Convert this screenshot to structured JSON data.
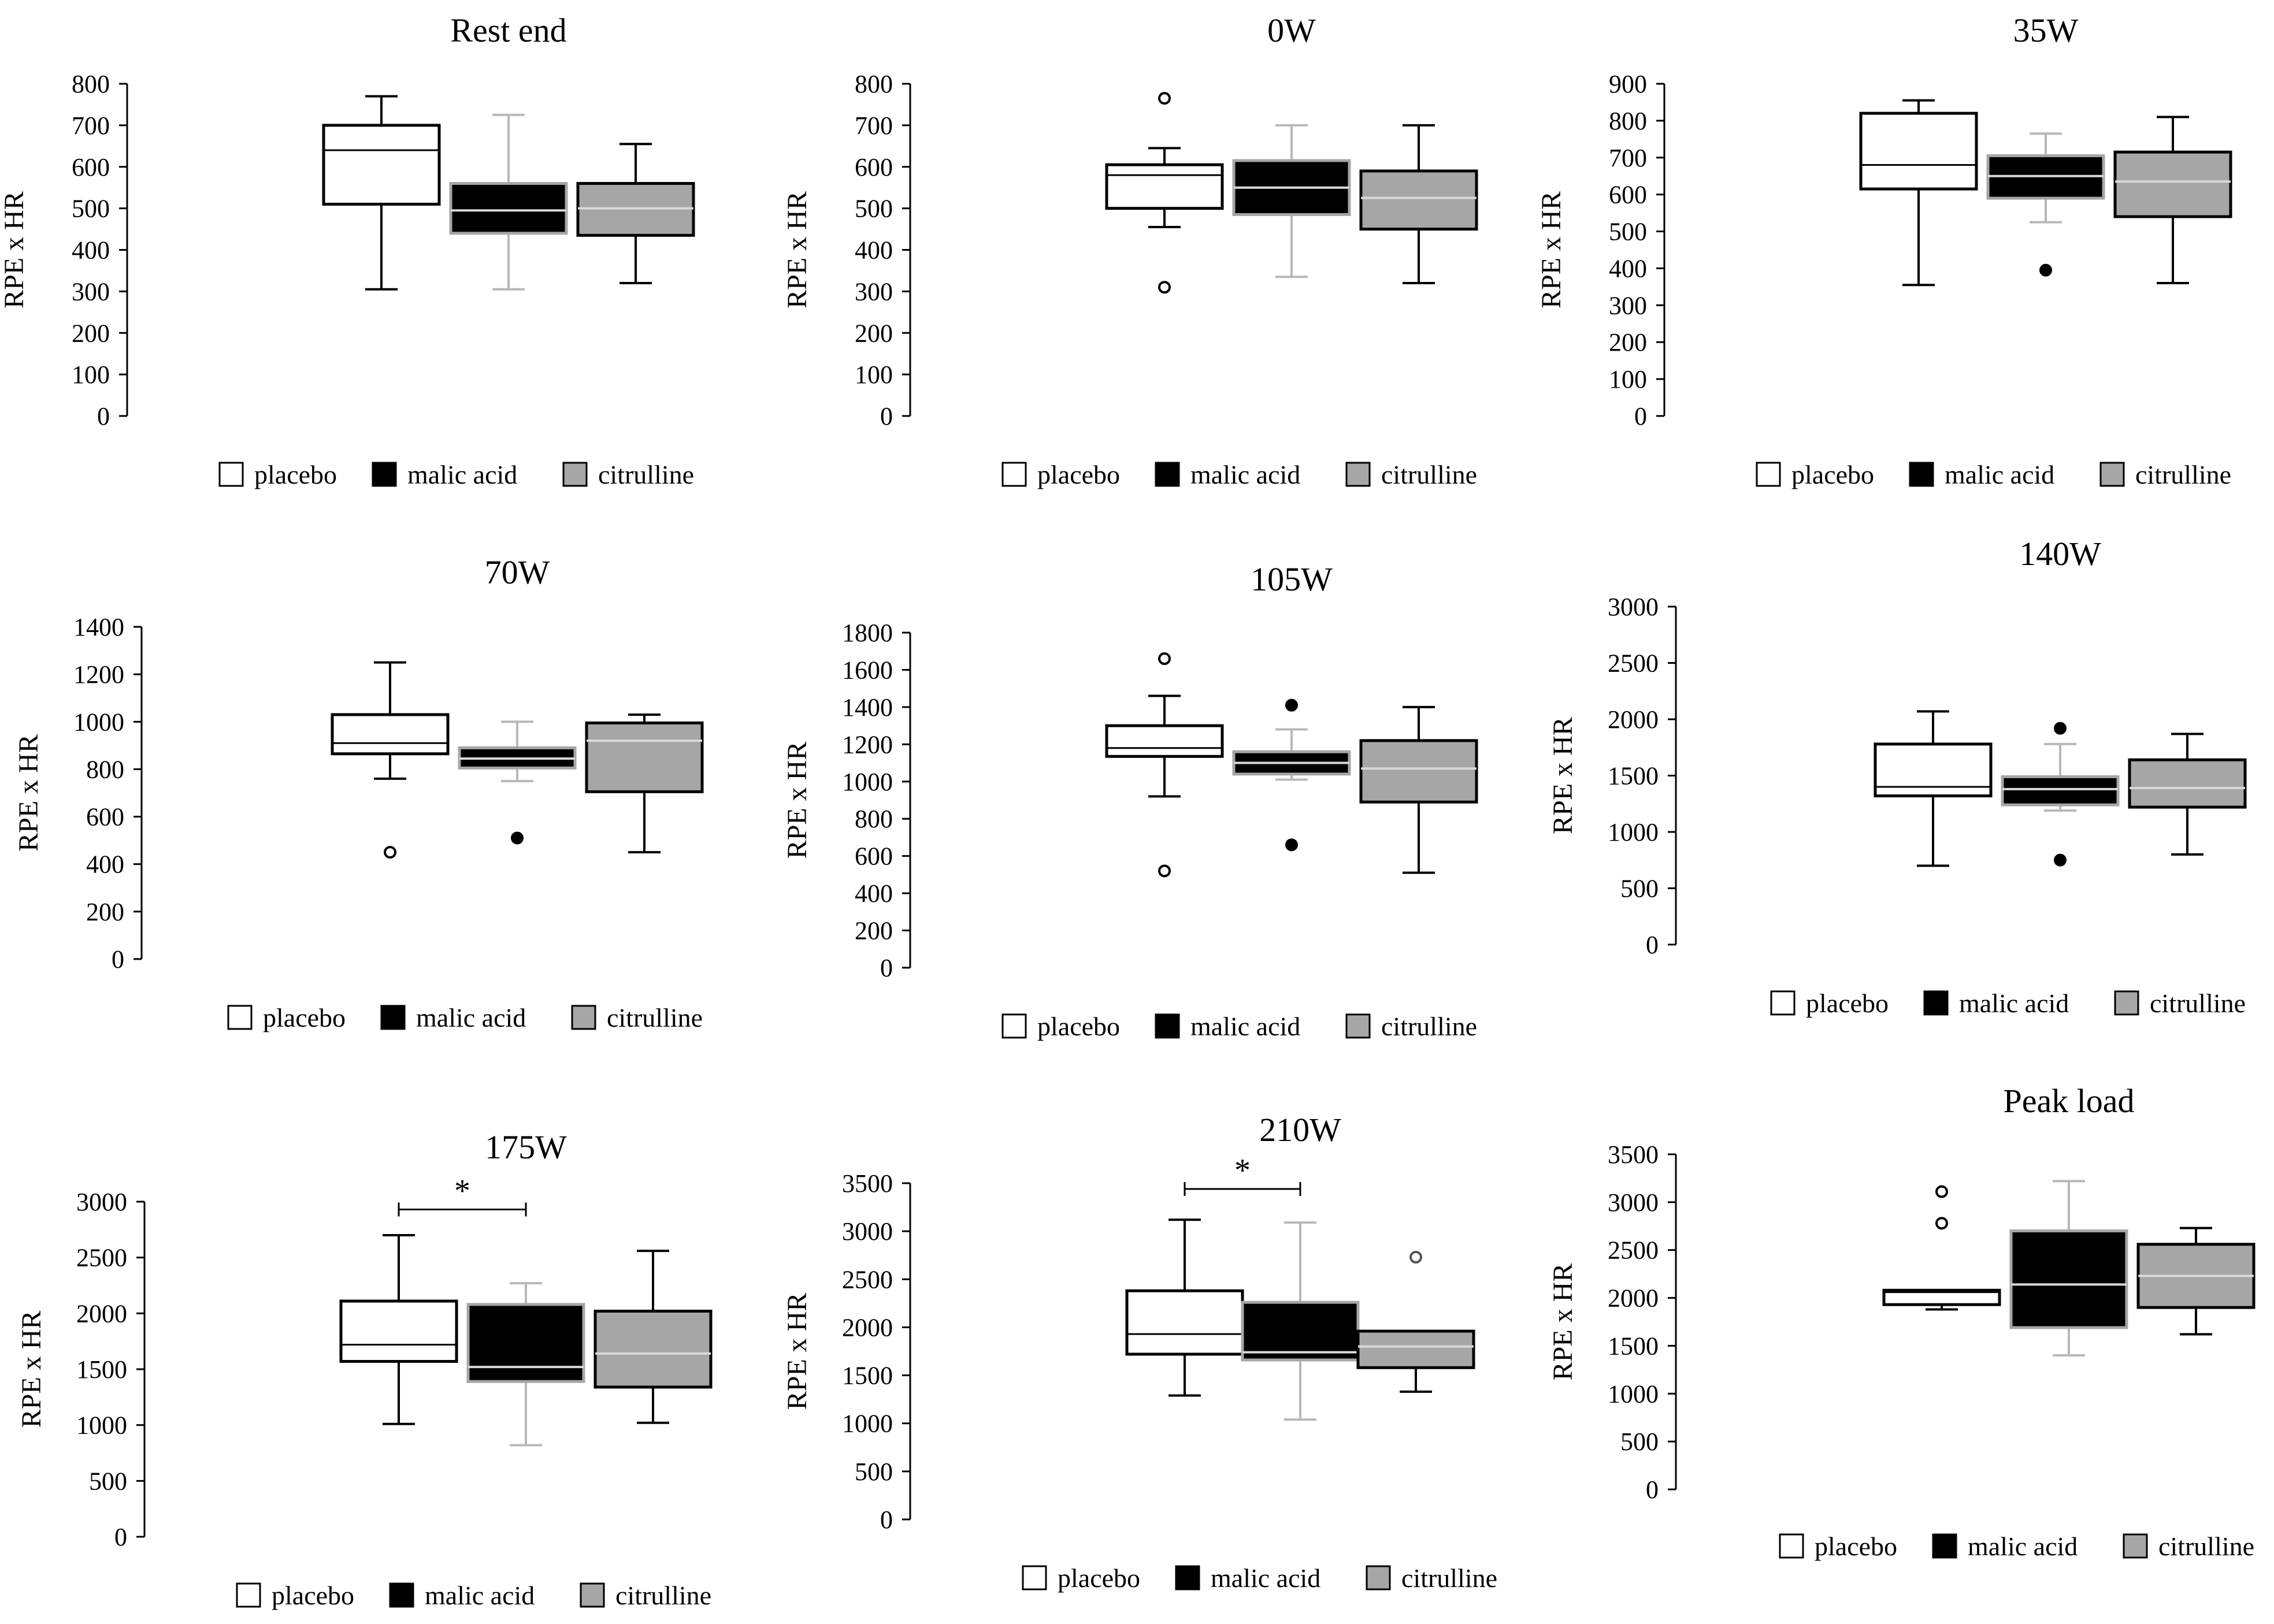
{
  "figure": {
    "colors": {
      "placebo": "#ffffff",
      "malic_acid": "#000000",
      "citrulline": "#a6a6a6",
      "axis": "#000000"
    },
    "legend_labels": [
      "placebo",
      "malic acid",
      "citrulline"
    ]
  },
  "chart_data": [
    {
      "type": "box",
      "title": "Rest end",
      "ylabel": "RPE x HR",
      "ylim": [
        0,
        800
      ],
      "ticks": [
        0,
        100,
        200,
        300,
        400,
        500,
        600,
        700,
        800
      ],
      "categories": [
        "placebo",
        "malic acid",
        "citrulline"
      ],
      "series": [
        {
          "name": "placebo",
          "min": 305,
          "q1": 510,
          "median": 640,
          "q3": 700,
          "max": 770,
          "outliers": []
        },
        {
          "name": "malic acid",
          "min": 305,
          "q1": 440,
          "median": 495,
          "q3": 560,
          "max": 725,
          "outliers": []
        },
        {
          "name": "citrulline",
          "min": 320,
          "q1": 435,
          "median": 500,
          "q3": 560,
          "max": 655,
          "outliers": []
        }
      ],
      "significance": null
    },
    {
      "type": "box",
      "title": "0W",
      "ylabel": "RPE x HR",
      "ylim": [
        0,
        800
      ],
      "ticks": [
        0,
        100,
        200,
        300,
        400,
        500,
        600,
        700,
        800
      ],
      "categories": [
        "placebo",
        "malic acid",
        "citrulline"
      ],
      "series": [
        {
          "name": "placebo",
          "min": 455,
          "q1": 500,
          "median": 580,
          "q3": 605,
          "max": 645,
          "outliers": [
            310,
            765
          ]
        },
        {
          "name": "malic acid",
          "min": 335,
          "q1": 485,
          "median": 550,
          "q3": 615,
          "max": 700,
          "outliers": []
        },
        {
          "name": "citrulline",
          "min": 320,
          "q1": 450,
          "median": 525,
          "q3": 590,
          "max": 700,
          "outliers": []
        }
      ],
      "significance": null
    },
    {
      "type": "box",
      "title": "35W",
      "ylabel": "RPE x HR",
      "ylim": [
        0,
        900
      ],
      "ticks": [
        0,
        100,
        200,
        300,
        400,
        500,
        600,
        700,
        800,
        900
      ],
      "categories": [
        "placebo",
        "malic acid",
        "citrulline"
      ],
      "series": [
        {
          "name": "placebo",
          "min": 355,
          "q1": 615,
          "median": 680,
          "q3": 820,
          "max": 855,
          "outliers": []
        },
        {
          "name": "malic acid",
          "min": 525,
          "q1": 590,
          "median": 650,
          "q3": 705,
          "max": 765,
          "outliers": [
            395
          ]
        },
        {
          "name": "citrulline",
          "min": 360,
          "q1": 540,
          "median": 635,
          "q3": 715,
          "max": 810,
          "outliers": []
        }
      ],
      "significance": null
    },
    {
      "type": "box",
      "title": "70W",
      "ylabel": "RPE x HR",
      "ylim": [
        0,
        1400
      ],
      "ticks": [
        0,
        200,
        400,
        600,
        800,
        1000,
        1200,
        1400
      ],
      "categories": [
        "placebo",
        "malic acid",
        "citrulline"
      ],
      "series": [
        {
          "name": "placebo",
          "min": 760,
          "q1": 865,
          "median": 910,
          "q3": 1030,
          "max": 1250,
          "outliers": [
            450
          ]
        },
        {
          "name": "malic acid",
          "min": 750,
          "q1": 805,
          "median": 845,
          "q3": 890,
          "max": 1000,
          "outliers": [
            510
          ]
        },
        {
          "name": "citrulline",
          "min": 450,
          "q1": 705,
          "median": 920,
          "q3": 995,
          "max": 1030,
          "outliers": []
        }
      ],
      "significance": null
    },
    {
      "type": "box",
      "title": "105W",
      "ylabel": "RPE x HR",
      "ylim": [
        0,
        1800
      ],
      "ticks": [
        0,
        200,
        400,
        600,
        800,
        1000,
        1200,
        1400,
        1600,
        1800
      ],
      "categories": [
        "placebo",
        "malic acid",
        "citrulline"
      ],
      "series": [
        {
          "name": "placebo",
          "min": 920,
          "q1": 1135,
          "median": 1180,
          "q3": 1300,
          "max": 1460,
          "outliers": [
            520,
            1660
          ]
        },
        {
          "name": "malic acid",
          "min": 1010,
          "q1": 1040,
          "median": 1100,
          "q3": 1160,
          "max": 1280,
          "outliers": [
            660,
            1410
          ]
        },
        {
          "name": "citrulline",
          "min": 510,
          "q1": 890,
          "median": 1070,
          "q3": 1220,
          "max": 1400,
          "outliers": []
        }
      ],
      "significance": null
    },
    {
      "type": "box",
      "title": "140W",
      "ylabel": "RPE x HR",
      "ylim": [
        0,
        3000
      ],
      "ticks": [
        0,
        500,
        1000,
        1500,
        2000,
        2500,
        3000
      ],
      "categories": [
        "placebo",
        "malic acid",
        "citrulline"
      ],
      "series": [
        {
          "name": "placebo",
          "min": 700,
          "q1": 1320,
          "median": 1400,
          "q3": 1780,
          "max": 2070,
          "outliers": []
        },
        {
          "name": "malic acid",
          "min": 1190,
          "q1": 1240,
          "median": 1380,
          "q3": 1490,
          "max": 1780,
          "outliers": [
            750,
            1920
          ]
        },
        {
          "name": "citrulline",
          "min": 800,
          "q1": 1220,
          "median": 1390,
          "q3": 1640,
          "max": 1870,
          "outliers": []
        }
      ],
      "significance": null
    },
    {
      "type": "box",
      "title": "175W",
      "ylabel": "RPE x HR",
      "ylim": [
        0,
        3000
      ],
      "ticks": [
        0,
        500,
        1000,
        1500,
        2000,
        2500,
        3000
      ],
      "categories": [
        "placebo",
        "malic acid",
        "citrulline"
      ],
      "series": [
        {
          "name": "placebo",
          "min": 1010,
          "q1": 1570,
          "median": 1720,
          "q3": 2110,
          "max": 2700,
          "outliers": []
        },
        {
          "name": "malic acid",
          "min": 820,
          "q1": 1390,
          "median": 1520,
          "q3": 2080,
          "max": 2270,
          "outliers": []
        },
        {
          "name": "citrulline",
          "min": 1020,
          "q1": 1340,
          "median": 1640,
          "q3": 2020,
          "max": 2560,
          "outliers": []
        }
      ],
      "significance": {
        "from": 0,
        "to": 1,
        "label": "*",
        "level": 2930
      }
    },
    {
      "type": "box",
      "title": "210W",
      "ylabel": "RPE x HR",
      "ylim": [
        0,
        3500
      ],
      "ticks": [
        0,
        500,
        1000,
        1500,
        2000,
        2500,
        3000,
        3500
      ],
      "categories": [
        "placebo",
        "malic acid",
        "citrulline"
      ],
      "series": [
        {
          "name": "placebo",
          "min": 1290,
          "q1": 1720,
          "median": 1930,
          "q3": 2380,
          "max": 3120,
          "outliers": []
        },
        {
          "name": "malic acid",
          "min": 1040,
          "q1": 1660,
          "median": 1740,
          "q3": 2260,
          "max": 3090,
          "outliers": []
        },
        {
          "name": "citrulline",
          "min": 1330,
          "q1": 1580,
          "median": 1800,
          "q3": 1960,
          "max": 1960,
          "outliers": [
            2730
          ]
        }
      ],
      "significance": {
        "from": 0,
        "to": 1,
        "label": "*",
        "level": 3440
      }
    },
    {
      "type": "box",
      "title": "Peak load",
      "ylabel": "RPE x HR",
      "ylim": [
        0,
        3500
      ],
      "ticks": [
        0,
        500,
        1000,
        1500,
        2000,
        2500,
        3000,
        3500
      ],
      "categories": [
        "placebo",
        "malic acid",
        "citrulline"
      ],
      "series": [
        {
          "name": "placebo",
          "min": 1880,
          "q1": 1930,
          "median": 2060,
          "q3": 2080,
          "max": 2080,
          "outliers": [
            2780,
            3110
          ]
        },
        {
          "name": "malic acid",
          "min": 1400,
          "q1": 1690,
          "median": 2140,
          "q3": 2700,
          "max": 3220,
          "outliers": []
        },
        {
          "name": "citrulline",
          "min": 1620,
          "q1": 1900,
          "median": 2230,
          "q3": 2560,
          "max": 2730,
          "outliers": []
        }
      ],
      "significance": null
    }
  ]
}
